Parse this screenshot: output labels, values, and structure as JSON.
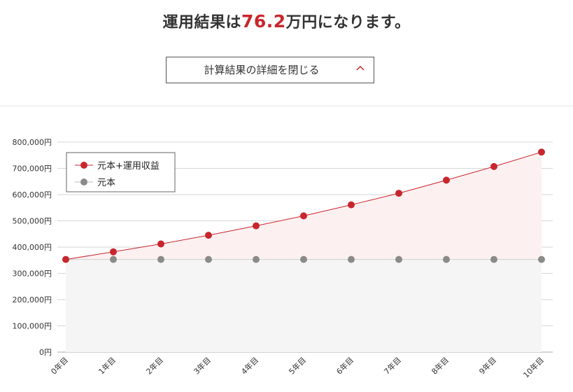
{
  "summary": {
    "prefix": "運用結果は",
    "amount": "76.2",
    "suffix": "万円になります。"
  },
  "toggle": {
    "label": "計算結果の詳細を閉じる",
    "icon": "chevron-up-icon"
  },
  "colors": {
    "accent": "#c8262d",
    "principal": "#8a8a8a",
    "area_total": "#fdf0f1",
    "area_principal": "#f5f5f5"
  },
  "chart_data": {
    "type": "line",
    "categories": [
      "0年目",
      "1年目",
      "2年目",
      "3年目",
      "4年目",
      "5年目",
      "6年目",
      "7年目",
      "8年目",
      "9年目",
      "10年目"
    ],
    "series": [
      {
        "name": "元本+運用収益",
        "values": [
          353000,
          382000,
          412000,
          445000,
          481000,
          519000,
          561000,
          605000,
          655000,
          707000,
          762000
        ]
      },
      {
        "name": "元本",
        "values": [
          353000,
          353000,
          353000,
          353000,
          353000,
          353000,
          353000,
          353000,
          353000,
          353000,
          353000
        ]
      }
    ],
    "yticks": [
      "0円",
      "100,000円",
      "200,000円",
      "300,000円",
      "400,000円",
      "500,000円",
      "600,000円",
      "700,000円",
      "800,000円"
    ],
    "ylim": [
      0,
      800000
    ],
    "grid": true,
    "legend_position": "top-left"
  }
}
